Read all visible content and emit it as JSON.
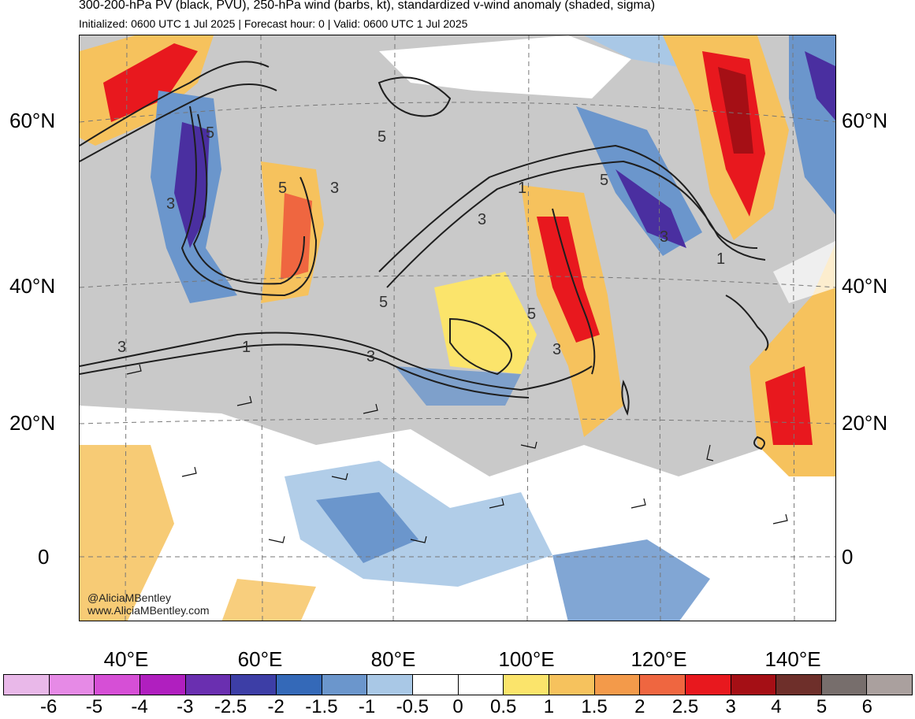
{
  "header": {
    "title": "300-200-hPa PV (black, PVU), 250-hPa wind (barbs, kt), standardized v-wind anomaly (shaded, sigma)",
    "subtitle": "Initialized: 0600 UTC 1 Jul 2025 | Forecast hour: 0 | Valid: 0600 UTC 1 Jul 2025"
  },
  "map": {
    "lat_labels_left": [
      "60°N",
      "40°N",
      "20°N",
      "0"
    ],
    "lat_labels_right": [
      "60°N",
      "40°N",
      "20°N",
      "0"
    ],
    "lon_labels": [
      "40°E",
      "60°E",
      "80°E",
      "100°E",
      "120°E",
      "140°E"
    ],
    "pv_contour_labels": [
      "5",
      "3",
      "5",
      "3",
      "5",
      "3",
      "1",
      "5",
      "3",
      "5",
      "3",
      "1",
      "5",
      "3",
      "1",
      "3"
    ],
    "colors": {
      "land_gray": "#c8c8c8",
      "ocean_white": "#ffffff",
      "positive_anomaly": "#f5d76e",
      "strong_positive": "#e03a1e",
      "negative_anomaly": "#6f9bd1",
      "strong_negative": "#4a2fa0",
      "pv_contour": "#1e1e1e"
    }
  },
  "credit": {
    "handle": "@AliciaMBentley",
    "url": "www.AliciaMBentley.com"
  },
  "colorbar": {
    "labels": [
      "-6",
      "-5",
      "-4",
      "-3",
      "-2.5",
      "-2",
      "-1.5",
      "-1",
      "-0.5",
      "0",
      "0.5",
      "1",
      "1.5",
      "2",
      "2.5",
      "3",
      "4",
      "5",
      "6"
    ],
    "colors": [
      "#e9b8e9",
      "#e68ae6",
      "#d64fd6",
      "#b01fbf",
      "#6a2fb0",
      "#3d3ea6",
      "#3469b8",
      "#6b96cc",
      "#a9c8e6",
      "#ffffff",
      "#ffffff",
      "#fbe46b",
      "#f6c25d",
      "#f39a4a",
      "#ef6640",
      "#e8181e",
      "#a50f15",
      "#6e2f2a",
      "#776e6c",
      "#aaa09e"
    ]
  }
}
